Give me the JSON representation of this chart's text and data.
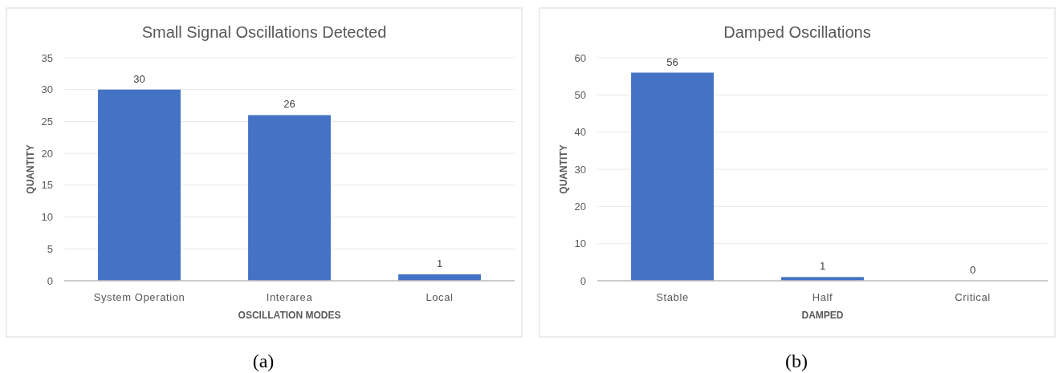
{
  "chart_data": [
    {
      "type": "bar",
      "title": "Small Signal Oscillations Detected",
      "xlabel": "OSCILLATION MODES",
      "ylabel": "QUANTITY",
      "categories": [
        "System Operation",
        "Interarea",
        "Local"
      ],
      "values": [
        30,
        26,
        1
      ],
      "color": "#4472c4",
      "ylim": [
        0,
        35
      ],
      "yticks": [
        0,
        5,
        10,
        15,
        20,
        25,
        30,
        35
      ],
      "grid": "y",
      "data_labels": true,
      "annotations": [
        "(a)"
      ]
    },
    {
      "type": "bar",
      "title": "Damped Oscillations",
      "xlabel": "DAMPED",
      "ylabel": "QUANTITY",
      "categories": [
        "Stable",
        "Half",
        "Critical"
      ],
      "values": [
        56,
        1,
        0
      ],
      "color": "#4472c4",
      "ylim": [
        0,
        60
      ],
      "yticks": [
        0,
        10,
        20,
        30,
        40,
        50,
        60
      ],
      "grid": "y",
      "data_labels": true,
      "annotations": [
        "(b)"
      ]
    }
  ]
}
